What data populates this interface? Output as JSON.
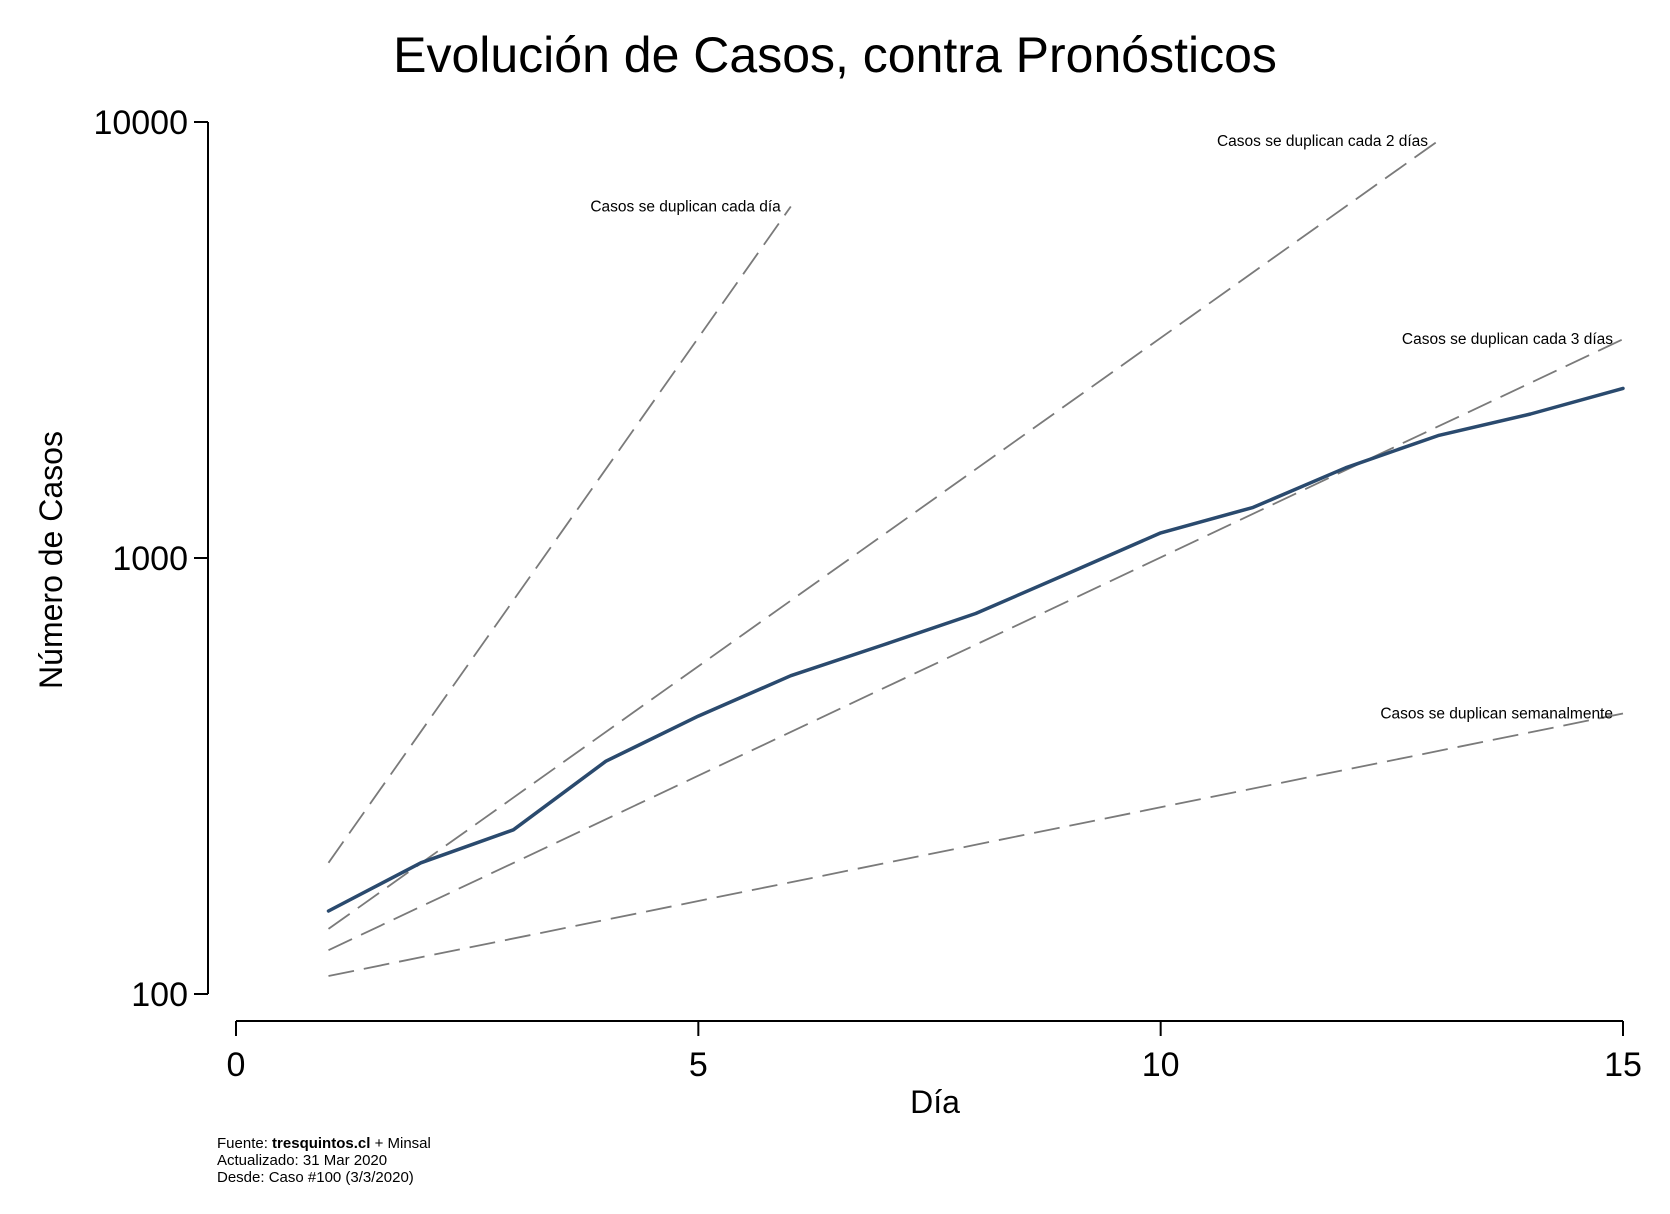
{
  "chart_data": {
    "type": "line",
    "title": "Evolución de Casos, contra Pronósticos",
    "xlabel": "Día",
    "ylabel": "Número de Casos",
    "xlim": [
      0,
      15
    ],
    "ylim": [
      100,
      10000
    ],
    "yscale": "log",
    "x_ticks": [
      0,
      5,
      10,
      15
    ],
    "y_ticks": [
      100,
      1000,
      10000
    ],
    "grid": false,
    "series": [
      {
        "x": [
          1,
          2,
          3,
          4,
          5,
          6,
          7,
          8,
          9,
          10,
          11,
          12,
          13,
          14,
          15
        ],
        "values": [
          155,
          200,
          238,
          342,
          434,
          537,
          632,
          746,
          922,
          1142,
          1306,
          1610,
          1909,
          2139,
          2449
        ],
        "color": "#2a4a6e",
        "style": "solid"
      }
    ],
    "reference_lines": [
      {
        "label": "Casos se duplican cada día",
        "x": [
          1,
          6
        ],
        "values": [
          200,
          6400
        ],
        "style": "dashed",
        "color": "#7a7a7a"
      },
      {
        "label": "Casos se duplican cada 2 días",
        "x": [
          1,
          13
        ],
        "values": [
          141,
          9050
        ],
        "style": "dashed",
        "color": "#7a7a7a"
      },
      {
        "label": "Casos se duplican cada 3 días",
        "x": [
          1,
          15
        ],
        "values": [
          126,
          3175
        ],
        "style": "dashed",
        "color": "#7a7a7a"
      },
      {
        "label": "Casos se duplican semanalmente",
        "x": [
          1,
          15
        ],
        "values": [
          110,
          440
        ],
        "style": "dashed",
        "color": "#7a7a7a"
      }
    ],
    "footnotes": {
      "source_prefix": "Fuente: ",
      "source_bold": "tresquintos.cl",
      "source_suffix": " + Minsal",
      "updated": "Actualizado: 31 Mar 2020",
      "since": "Desde: Caso #100 (3/3/2020)"
    }
  }
}
